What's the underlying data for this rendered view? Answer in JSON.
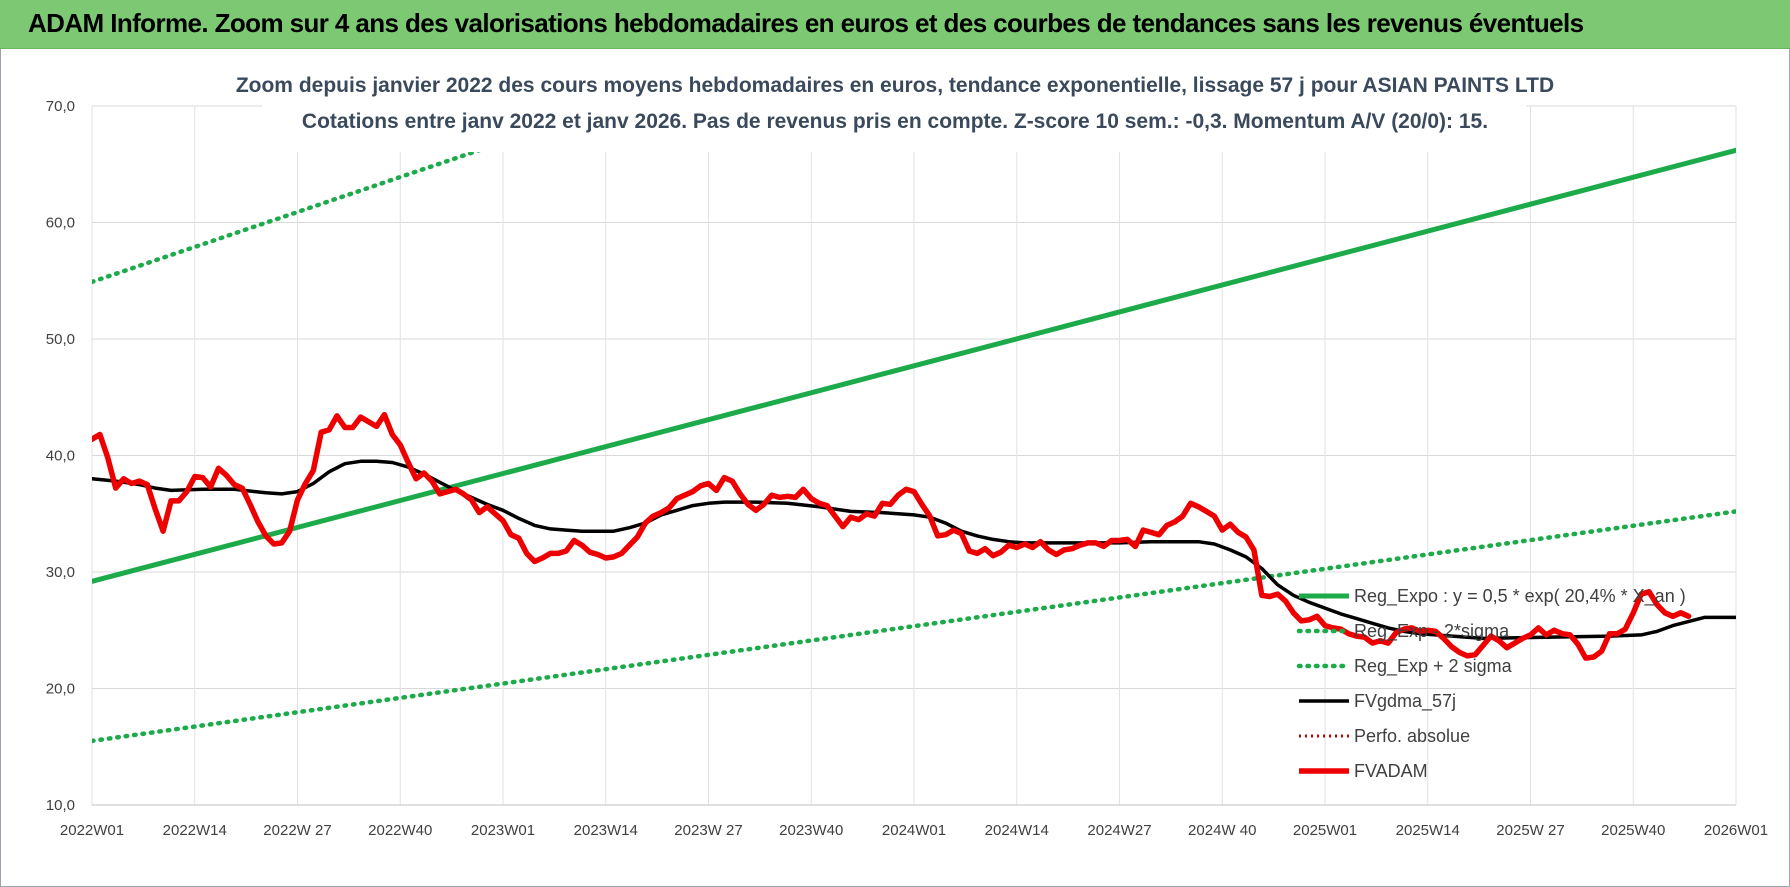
{
  "header": {
    "title": "ADAM Informe. Zoom sur 4 ans des valorisations hebdomadaires en euros et des courbes de tendances sans les revenus éventuels"
  },
  "colors": {
    "banner": "#7dc873",
    "trend_green": "#1daa4a",
    "price_red": "#ee0000",
    "smooth_black": "#000000",
    "perf_red": "#c00000"
  },
  "chart_data": {
    "type": "line",
    "title_line1": "Zoom depuis janvier 2022 des cours moyens hebdomadaires en euros, tendance exponentielle, lissage 57 j pour ASIAN PAINTS LTD",
    "title_line2": "Cotations entre janv 2022 et janv 2026. Pas de revenus pris en compte. Z-score 10 sem.: -0,3. Momentum A/V (20/0): 15.",
    "ylim": [
      10,
      70
    ],
    "y_ticks": [
      "10,0",
      "20,0",
      "30,0",
      "40,0",
      "50,0",
      "60,0",
      "70,0"
    ],
    "y_tick_values": [
      10,
      20,
      30,
      40,
      50,
      60,
      70
    ],
    "x_ticks": [
      "2022W01",
      "2022W14",
      "2022W 27",
      "2022W40",
      "2023W01",
      "2023W14",
      "2023W 27",
      "2023W40",
      "2024W01",
      "2024W14",
      "2024W27",
      "2024W 40",
      "2025W01",
      "2025W14",
      "2025W 27",
      "2025W40",
      "2026W01"
    ],
    "x_tick_weeks": [
      0,
      13,
      26,
      39,
      52,
      65,
      78,
      91,
      104,
      117,
      130,
      143,
      156,
      169,
      182,
      195,
      208
    ],
    "grid": true,
    "legend_position": "right",
    "series": [
      {
        "name": "Reg_Expo : y = 0,5 * exp( 20,4% *  X_an )",
        "style": "solid-green",
        "points": [
          [
            0,
            29.2
          ],
          [
            208,
            66.2
          ]
        ]
      },
      {
        "name": "Reg_Exp - 2*sigma",
        "style": "dotted-green",
        "points": [
          [
            0,
            15.5
          ],
          [
            208,
            35.2
          ]
        ]
      },
      {
        "name": "Reg_Exp + 2 sigma",
        "style": "dotted-green",
        "points": [
          [
            0,
            54.9
          ],
          [
            52,
            66.9
          ],
          [
            208,
            105
          ]
        ]
      },
      {
        "name": "FVgdma_57j",
        "style": "solid-black",
        "points": [
          [
            0,
            38.0
          ],
          [
            3,
            37.8
          ],
          [
            6,
            37.5
          ],
          [
            8,
            37.2
          ],
          [
            10,
            37.0
          ],
          [
            14,
            37.1
          ],
          [
            18,
            37.1
          ],
          [
            22,
            36.8
          ],
          [
            24,
            36.7
          ],
          [
            26,
            36.9
          ],
          [
            28,
            37.6
          ],
          [
            30,
            38.6
          ],
          [
            32,
            39.3
          ],
          [
            34,
            39.5
          ],
          [
            36,
            39.5
          ],
          [
            38,
            39.4
          ],
          [
            40,
            39.0
          ],
          [
            42,
            38.4
          ],
          [
            44,
            37.7
          ],
          [
            46,
            37.0
          ],
          [
            48,
            36.4
          ],
          [
            50,
            35.8
          ],
          [
            52,
            35.3
          ],
          [
            54,
            34.6
          ],
          [
            56,
            34.0
          ],
          [
            58,
            33.7
          ],
          [
            60,
            33.6
          ],
          [
            62,
            33.5
          ],
          [
            64,
            33.5
          ],
          [
            66,
            33.5
          ],
          [
            68,
            33.8
          ],
          [
            70,
            34.2
          ],
          [
            72,
            34.9
          ],
          [
            74,
            35.3
          ],
          [
            76,
            35.7
          ],
          [
            78,
            35.9
          ],
          [
            80,
            36.0
          ],
          [
            84,
            36.0
          ],
          [
            88,
            35.9
          ],
          [
            92,
            35.6
          ],
          [
            96,
            35.2
          ],
          [
            100,
            35.1
          ],
          [
            104,
            34.9
          ],
          [
            106,
            34.7
          ],
          [
            108,
            34.2
          ],
          [
            110,
            33.5
          ],
          [
            112,
            33.1
          ],
          [
            114,
            32.8
          ],
          [
            116,
            32.6
          ],
          [
            118,
            32.5
          ],
          [
            130,
            32.5
          ],
          [
            134,
            32.6
          ],
          [
            140,
            32.6
          ],
          [
            142,
            32.4
          ],
          [
            144,
            31.9
          ],
          [
            146,
            31.3
          ],
          [
            148,
            30.3
          ],
          [
            150,
            28.9
          ],
          [
            152,
            28.0
          ],
          [
            154,
            27.4
          ],
          [
            156,
            26.9
          ],
          [
            158,
            26.4
          ],
          [
            160,
            26.0
          ],
          [
            162,
            25.6
          ],
          [
            164,
            25.2
          ],
          [
            166,
            24.9
          ],
          [
            168,
            24.7
          ],
          [
            170,
            24.6
          ],
          [
            174,
            24.4
          ],
          [
            176,
            24.3
          ],
          [
            192,
            24.5
          ],
          [
            196,
            24.6
          ],
          [
            198,
            24.9
          ],
          [
            200,
            25.4
          ],
          [
            204,
            26.1
          ],
          [
            208,
            26.1
          ]
        ]
      },
      {
        "name": "Perfo. absolue",
        "style": "dotted-red",
        "points": []
      },
      {
        "name": "FVADAM",
        "style": "solid-red-thick",
        "points": [
          [
            0,
            41.4
          ],
          [
            1,
            41.8
          ],
          [
            2,
            39.8
          ],
          [
            3,
            37.2
          ],
          [
            4,
            38.0
          ],
          [
            5,
            37.6
          ],
          [
            6,
            37.8
          ],
          [
            7,
            37.5
          ],
          [
            8,
            35.4
          ],
          [
            9,
            33.5
          ],
          [
            10,
            36.1
          ],
          [
            11,
            36.1
          ],
          [
            12,
            36.9
          ],
          [
            13,
            38.2
          ],
          [
            14,
            38.1
          ],
          [
            15,
            37.3
          ],
          [
            16,
            38.9
          ],
          [
            17,
            38.3
          ],
          [
            18,
            37.5
          ],
          [
            19,
            37.2
          ],
          [
            20,
            35.8
          ],
          [
            21,
            34.3
          ],
          [
            22,
            33.1
          ],
          [
            23,
            32.4
          ],
          [
            24,
            32.5
          ],
          [
            25,
            33.5
          ],
          [
            26,
            36.2
          ],
          [
            27,
            37.6
          ],
          [
            28,
            38.7
          ],
          [
            29,
            42.0
          ],
          [
            30,
            42.2
          ],
          [
            31,
            43.4
          ],
          [
            32,
            42.4
          ],
          [
            33,
            42.4
          ],
          [
            34,
            43.3
          ],
          [
            35,
            42.9
          ],
          [
            36,
            42.5
          ],
          [
            37,
            43.5
          ],
          [
            38,
            41.8
          ],
          [
            39,
            40.9
          ],
          [
            40,
            39.4
          ],
          [
            41,
            38.0
          ],
          [
            42,
            38.5
          ],
          [
            43,
            37.8
          ],
          [
            44,
            36.7
          ],
          [
            45,
            36.9
          ],
          [
            46,
            37.1
          ],
          [
            47,
            36.7
          ],
          [
            48,
            36.2
          ],
          [
            49,
            35.1
          ],
          [
            50,
            35.6
          ],
          [
            51,
            35.0
          ],
          [
            52,
            34.4
          ],
          [
            53,
            33.2
          ],
          [
            54,
            32.9
          ],
          [
            55,
            31.6
          ],
          [
            56,
            30.9
          ],
          [
            57,
            31.2
          ],
          [
            58,
            31.6
          ],
          [
            59,
            31.6
          ],
          [
            60,
            31.8
          ],
          [
            61,
            32.7
          ],
          [
            62,
            32.3
          ],
          [
            63,
            31.7
          ],
          [
            64,
            31.5
          ],
          [
            65,
            31.2
          ],
          [
            66,
            31.3
          ],
          [
            67,
            31.6
          ],
          [
            68,
            32.3
          ],
          [
            69,
            33.0
          ],
          [
            70,
            34.2
          ],
          [
            71,
            34.8
          ],
          [
            72,
            35.1
          ],
          [
            73,
            35.5
          ],
          [
            74,
            36.3
          ],
          [
            75,
            36.6
          ],
          [
            76,
            36.9
          ],
          [
            77,
            37.4
          ],
          [
            78,
            37.6
          ],
          [
            79,
            37.0
          ],
          [
            80,
            38.1
          ],
          [
            81,
            37.8
          ],
          [
            82,
            36.7
          ],
          [
            83,
            35.8
          ],
          [
            84,
            35.3
          ],
          [
            85,
            35.8
          ],
          [
            86,
            36.6
          ],
          [
            87,
            36.4
          ],
          [
            88,
            36.5
          ],
          [
            89,
            36.4
          ],
          [
            90,
            37.1
          ],
          [
            91,
            36.3
          ],
          [
            92,
            35.9
          ],
          [
            93,
            35.7
          ],
          [
            94,
            34.8
          ],
          [
            95,
            33.9
          ],
          [
            96,
            34.7
          ],
          [
            97,
            34.5
          ],
          [
            98,
            35.0
          ],
          [
            99,
            34.8
          ],
          [
            100,
            35.9
          ],
          [
            101,
            35.8
          ],
          [
            102,
            36.6
          ],
          [
            103,
            37.1
          ],
          [
            104,
            36.9
          ],
          [
            105,
            35.8
          ],
          [
            106,
            34.8
          ],
          [
            107,
            33.1
          ],
          [
            108,
            33.2
          ],
          [
            109,
            33.6
          ],
          [
            110,
            33.3
          ],
          [
            111,
            31.8
          ],
          [
            112,
            31.6
          ],
          [
            113,
            32.0
          ],
          [
            114,
            31.4
          ],
          [
            115,
            31.7
          ],
          [
            116,
            32.3
          ],
          [
            117,
            32.1
          ],
          [
            118,
            32.4
          ],
          [
            119,
            32.1
          ],
          [
            120,
            32.6
          ],
          [
            121,
            31.9
          ],
          [
            122,
            31.5
          ],
          [
            123,
            31.9
          ],
          [
            124,
            32.0
          ],
          [
            125,
            32.3
          ],
          [
            126,
            32.5
          ],
          [
            127,
            32.5
          ],
          [
            128,
            32.2
          ],
          [
            129,
            32.7
          ],
          [
            130,
            32.7
          ],
          [
            131,
            32.8
          ],
          [
            132,
            32.2
          ],
          [
            133,
            33.6
          ],
          [
            134,
            33.4
          ],
          [
            135,
            33.2
          ],
          [
            136,
            34.0
          ],
          [
            137,
            34.3
          ],
          [
            138,
            34.8
          ],
          [
            139,
            35.9
          ],
          [
            140,
            35.6
          ],
          [
            141,
            35.2
          ],
          [
            142,
            34.8
          ],
          [
            143,
            33.6
          ],
          [
            144,
            34.1
          ],
          [
            145,
            33.4
          ],
          [
            146,
            33.0
          ],
          [
            147,
            31.9
          ],
          [
            148,
            28.0
          ],
          [
            149,
            27.9
          ],
          [
            150,
            28.1
          ],
          [
            151,
            27.5
          ],
          [
            152,
            26.5
          ],
          [
            153,
            25.8
          ],
          [
            154,
            25.9
          ],
          [
            155,
            26.2
          ],
          [
            156,
            25.4
          ],
          [
            157,
            25.2
          ],
          [
            158,
            25.1
          ],
          [
            159,
            24.7
          ],
          [
            160,
            24.5
          ],
          [
            161,
            24.4
          ],
          [
            162,
            23.9
          ],
          [
            163,
            24.1
          ],
          [
            164,
            23.9
          ],
          [
            165,
            24.8
          ],
          [
            166,
            25.1
          ],
          [
            167,
            25.2
          ],
          [
            168,
            24.9
          ],
          [
            169,
            25.0
          ],
          [
            170,
            24.9
          ],
          [
            171,
            24.3
          ],
          [
            172,
            23.6
          ],
          [
            173,
            23.1
          ],
          [
            174,
            22.8
          ],
          [
            175,
            22.9
          ],
          [
            176,
            23.7
          ],
          [
            177,
            24.5
          ],
          [
            178,
            24.1
          ],
          [
            179,
            23.5
          ],
          [
            180,
            23.9
          ],
          [
            181,
            24.3
          ],
          [
            182,
            24.6
          ],
          [
            183,
            25.2
          ],
          [
            184,
            24.6
          ],
          [
            185,
            25.0
          ],
          [
            186,
            24.7
          ],
          [
            187,
            24.6
          ],
          [
            188,
            23.8
          ],
          [
            189,
            22.6
          ],
          [
            190,
            22.7
          ],
          [
            191,
            23.2
          ],
          [
            192,
            24.7
          ],
          [
            193,
            24.7
          ],
          [
            194,
            25.1
          ],
          [
            195,
            26.5
          ],
          [
            196,
            28.1
          ],
          [
            197,
            28.3
          ],
          [
            198,
            27.2
          ],
          [
            199,
            26.5
          ],
          [
            200,
            26.2
          ],
          [
            201,
            26.5
          ],
          [
            202,
            26.2
          ]
        ]
      }
    ]
  }
}
